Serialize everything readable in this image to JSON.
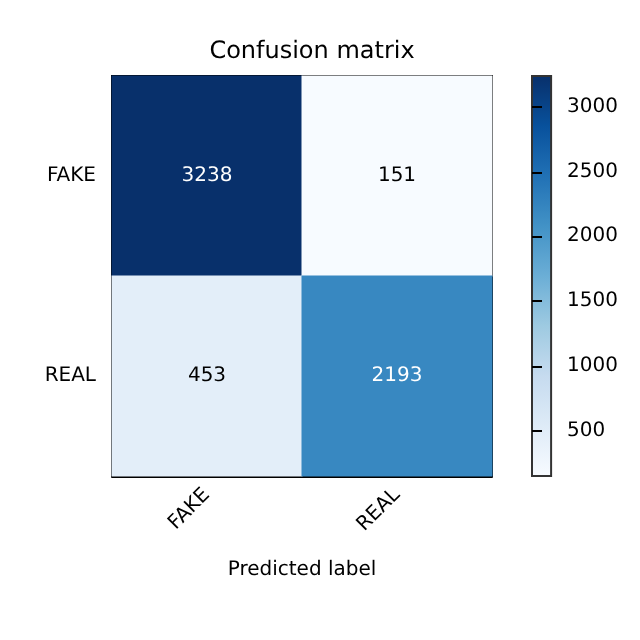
{
  "chart_data": {
    "type": "heatmap",
    "title": "Confusion matrix",
    "xlabel": "Predicted label",
    "categories": [
      "FAKE",
      "REAL"
    ],
    "y_categories": [
      "FAKE",
      "REAL"
    ],
    "cells": [
      [
        3238,
        151
      ],
      [
        453,
        2193
      ]
    ],
    "clim": [
      151,
      3238
    ],
    "cticks": [
      500,
      1000,
      1500,
      2000,
      2500,
      3000
    ],
    "data_labels": true
  }
}
